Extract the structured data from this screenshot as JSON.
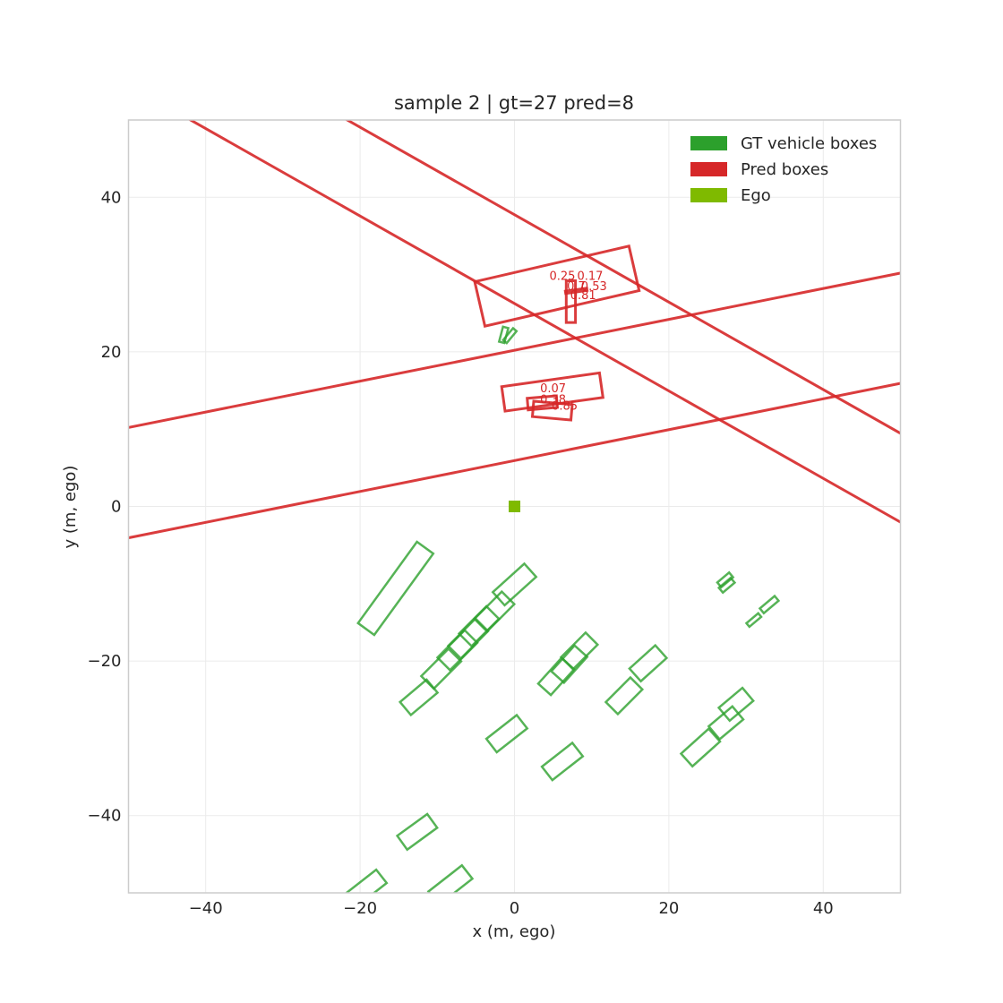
{
  "chart_data": {
    "type": "scatter",
    "title": "sample 2 | gt=27 pred=8",
    "xlabel": "x (m, ego)",
    "ylabel": "y (m, ego)",
    "xlim": [
      -50,
      50
    ],
    "ylim": [
      -50,
      50
    ],
    "xticks": [
      -40,
      -20,
      0,
      20,
      40
    ],
    "yticks": [
      -40,
      -20,
      0,
      20,
      40
    ],
    "tick_labels_x": [
      "−40",
      "−20",
      "0",
      "20",
      "40"
    ],
    "tick_labels_y": [
      "−40",
      "−20",
      "0",
      "20",
      "40"
    ],
    "grid": true,
    "legend_position": "top-right",
    "legend": [
      {
        "label": "GT vehicle boxes",
        "color": "#2ca02c"
      },
      {
        "label": "Pred boxes",
        "color": "#d62728"
      },
      {
        "label": "Ego",
        "color": "#7fba00"
      }
    ],
    "colors": {
      "gt": "#2ca02c",
      "pred": "#d62728",
      "ego": "#7fba00"
    },
    "ego": {
      "x": 0,
      "y": 0
    },
    "gt_boxes": [
      {
        "cx": -15.4,
        "cy": -10.6,
        "length": 13.0,
        "width": 2.6,
        "yaw_deg": 54
      },
      {
        "cx": 0.0,
        "cy": -10.1,
        "length": 5.5,
        "width": 2.3,
        "yaw_deg": 42
      },
      {
        "cx": -2.6,
        "cy": -13.6,
        "length": 5.0,
        "width": 2.3,
        "yaw_deg": 45
      },
      {
        "cx": -4.6,
        "cy": -15.5,
        "length": 5.0,
        "width": 2.3,
        "yaw_deg": 45
      },
      {
        "cx": -6.0,
        "cy": -17.1,
        "length": 5.0,
        "width": 2.3,
        "yaw_deg": 45
      },
      {
        "cx": -7.4,
        "cy": -18.6,
        "length": 5.0,
        "width": 2.3,
        "yaw_deg": 45
      },
      {
        "cx": -9.5,
        "cy": -21.0,
        "length": 5.0,
        "width": 2.3,
        "yaw_deg": 45
      },
      {
        "cx": -12.4,
        "cy": -24.7,
        "length": 4.5,
        "width": 2.2,
        "yaw_deg": 40
      },
      {
        "cx": 8.4,
        "cy": -18.7,
        "length": 4.5,
        "width": 2.2,
        "yaw_deg": 45
      },
      {
        "cx": 7.1,
        "cy": -20.4,
        "length": 4.5,
        "width": 2.2,
        "yaw_deg": 48
      },
      {
        "cx": 5.4,
        "cy": -22.0,
        "length": 4.5,
        "width": 2.2,
        "yaw_deg": 48
      },
      {
        "cx": 17.3,
        "cy": -20.3,
        "length": 4.5,
        "width": 2.2,
        "yaw_deg": 42
      },
      {
        "cx": 14.2,
        "cy": -24.5,
        "length": 4.5,
        "width": 2.2,
        "yaw_deg": 45
      },
      {
        "cx": 28.7,
        "cy": -25.6,
        "length": 4.0,
        "width": 2.2,
        "yaw_deg": 40
      },
      {
        "cx": 27.4,
        "cy": -28.0,
        "length": 4.0,
        "width": 2.2,
        "yaw_deg": 40
      },
      {
        "cx": 24.1,
        "cy": -31.2,
        "length": 4.8,
        "width": 2.2,
        "yaw_deg": 42
      },
      {
        "cx": -1.0,
        "cy": -29.4,
        "length": 5.0,
        "width": 2.2,
        "yaw_deg": 38
      },
      {
        "cx": 6.2,
        "cy": -33.0,
        "length": 5.0,
        "width": 2.2,
        "yaw_deg": 38
      },
      {
        "cx": -12.6,
        "cy": -42.1,
        "length": 4.8,
        "width": 2.2,
        "yaw_deg": 36
      },
      {
        "cx": -19.2,
        "cy": -49.4,
        "length": 5.0,
        "width": 2.2,
        "yaw_deg": 38
      },
      {
        "cx": -8.3,
        "cy": -49.0,
        "length": 5.5,
        "width": 2.2,
        "yaw_deg": 38
      },
      {
        "cx": 27.3,
        "cy": -9.5,
        "length": 2.0,
        "width": 0.8,
        "yaw_deg": 40
      },
      {
        "cx": 27.5,
        "cy": -10.2,
        "length": 2.0,
        "width": 0.8,
        "yaw_deg": 40
      },
      {
        "cx": 31.0,
        "cy": -14.7,
        "length": 2.0,
        "width": 0.6,
        "yaw_deg": 40
      },
      {
        "cx": 33.0,
        "cy": -12.7,
        "length": 2.5,
        "width": 0.8,
        "yaw_deg": 40
      },
      {
        "cx": -1.4,
        "cy": 22.2,
        "length": 2.0,
        "width": 0.7,
        "yaw_deg": 75
      },
      {
        "cx": -0.6,
        "cy": 22.1,
        "length": 2.0,
        "width": 0.6,
        "yaw_deg": 50
      }
    ],
    "pred_boxes": [
      {
        "cx": -0.35,
        "cy": 13.0,
        "length": 154.0,
        "width": 14.0,
        "yaw_deg": 11.3
      },
      {
        "cx": -0.35,
        "cy": 32.2,
        "length": 154.0,
        "width": 10.0,
        "yaw_deg": -29.5
      },
      {
        "cx": 5.5,
        "cy": 28.5,
        "length": 20.5,
        "width": 5.9,
        "yaw_deg": 13
      },
      {
        "cx": 7.3,
        "cy": 26.5,
        "length": 5.4,
        "width": 1.2,
        "yaw_deg": 90
      },
      {
        "cx": 8.0,
        "cy": 27.9,
        "length": 2.8,
        "width": 0.3,
        "yaw_deg": 8
      },
      {
        "cx": 4.9,
        "cy": 14.8,
        "length": 12.8,
        "width": 3.2,
        "yaw_deg": 8
      },
      {
        "cx": 3.6,
        "cy": 13.4,
        "length": 3.8,
        "width": 1.5,
        "yaw_deg": 5
      },
      {
        "cx": 4.9,
        "cy": 12.4,
        "length": 5.0,
        "width": 2.0,
        "yaw_deg": -5
      }
    ],
    "scores": [
      {
        "x": 6.2,
        "y": 29.3,
        "text": "0.25"
      },
      {
        "x": 9.8,
        "y": 29.3,
        "text": "0.17"
      },
      {
        "x": 8.0,
        "y": 28.0,
        "text": "0.7"
      },
      {
        "x": 10.3,
        "y": 28.0,
        "text": "0.53"
      },
      {
        "x": 8.9,
        "y": 26.8,
        "text": "0.81"
      },
      {
        "x": 5.0,
        "y": 14.8,
        "text": "0.07"
      },
      {
        "x": 5.0,
        "y": 13.3,
        "text": "0.38"
      },
      {
        "x": 6.5,
        "y": 12.5,
        "text": "0.85"
      }
    ]
  }
}
